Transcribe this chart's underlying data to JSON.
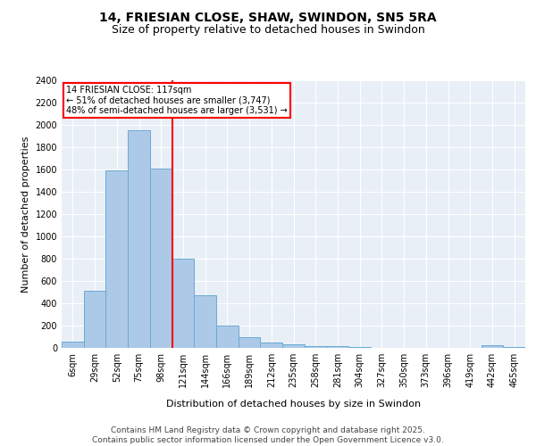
{
  "title": "14, FRIESIAN CLOSE, SHAW, SWINDON, SN5 5RA",
  "subtitle": "Size of property relative to detached houses in Swindon",
  "xlabel": "Distribution of detached houses by size in Swindon",
  "ylabel": "Number of detached properties",
  "bin_labels": [
    "6sqm",
    "29sqm",
    "52sqm",
    "75sqm",
    "98sqm",
    "121sqm",
    "144sqm",
    "166sqm",
    "189sqm",
    "212sqm",
    "235sqm",
    "258sqm",
    "281sqm",
    "304sqm",
    "327sqm",
    "350sqm",
    "373sqm",
    "396sqm",
    "419sqm",
    "442sqm",
    "465sqm"
  ],
  "bin_values": [
    55,
    510,
    1590,
    1950,
    1610,
    800,
    475,
    200,
    95,
    45,
    30,
    20,
    15,
    5,
    3,
    2,
    1,
    1,
    1,
    25,
    5
  ],
  "bar_color": "#adc9e8",
  "bar_edge_color": "#6aaad4",
  "annotation_line1": "14 FRIESIAN CLOSE: 117sqm",
  "annotation_line2": "← 51% of detached houses are smaller (3,747)",
  "annotation_line3": "48% of semi-detached houses are larger (3,531) →",
  "vline_color": "red",
  "vline_bin_index": 4.52,
  "annotation_box_color": "red",
  "ylim": [
    0,
    2400
  ],
  "yticks": [
    0,
    200,
    400,
    600,
    800,
    1000,
    1200,
    1400,
    1600,
    1800,
    2000,
    2200,
    2400
  ],
  "background_color": "#e8eff7",
  "footer_line1": "Contains HM Land Registry data © Crown copyright and database right 2025.",
  "footer_line2": "Contains public sector information licensed under the Open Government Licence v3.0.",
  "title_fontsize": 10,
  "subtitle_fontsize": 9,
  "axis_label_fontsize": 8,
  "tick_fontsize": 7,
  "footer_fontsize": 6.5
}
